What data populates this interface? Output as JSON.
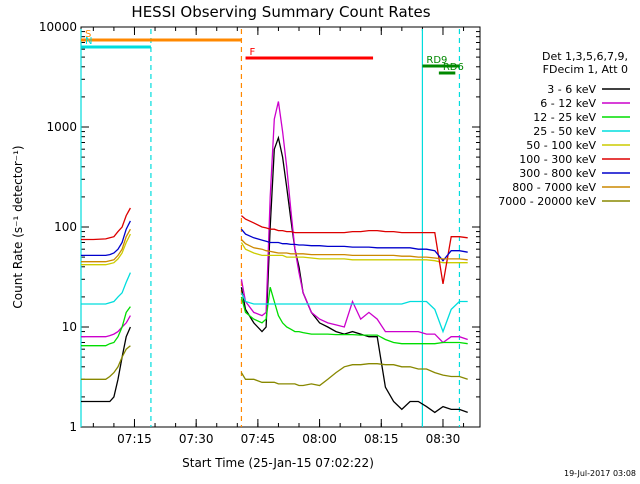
{
  "chart_data": {
    "type": "line",
    "title": "HESSI Observing Summary Count Rates",
    "xlabel": "Start Time (25-Jan-15 07:02:22)",
    "ylabel": "Count Rate (s⁻¹ detector⁻¹)",
    "y_scale": "log",
    "ylim": [
      1,
      10000
    ],
    "x_range_minutes_utc": [
      "07:02",
      "08:39"
    ],
    "xticks": [
      "07:15",
      "07:30",
      "07:45",
      "08:00",
      "08:15",
      "08:30"
    ],
    "yticks": [
      "1",
      "10",
      "100",
      "1000",
      "10000"
    ],
    "legend_header": [
      "Det 1,3,5,6,7,9,",
      "FDecim 1, Att 0"
    ],
    "x_times": [
      "07:02",
      "07:05",
      "07:08",
      "07:09",
      "07:10",
      "07:11",
      "07:12",
      "07:13",
      "07:14",
      "07:40",
      "07:41",
      "07:42",
      "07:44",
      "07:46",
      "07:47",
      "07:48",
      "07:49",
      "07:50",
      "07:51",
      "07:52",
      "07:53",
      "07:54",
      "07:55",
      "07:56",
      "07:58",
      "08:00",
      "08:02",
      "08:04",
      "08:06",
      "08:08",
      "08:10",
      "08:12",
      "08:14",
      "08:16",
      "08:18",
      "08:20",
      "08:22",
      "08:24",
      "08:26",
      "08:28",
      "08:30",
      "08:32",
      "08:34",
      "08:36"
    ],
    "series": [
      {
        "name": "3 - 6 keV",
        "color": "#000000",
        "values": [
          1.8,
          1.8,
          1.8,
          1.8,
          2,
          3,
          5,
          8,
          10,
          null,
          25,
          15,
          11,
          9,
          10,
          100,
          600,
          780,
          500,
          250,
          120,
          60,
          40,
          22,
          14,
          11,
          10,
          9,
          8.5,
          9,
          8.5,
          8,
          8,
          2.5,
          1.8,
          1.5,
          1.8,
          1.8,
          1.6,
          1.4,
          1.6,
          1.5,
          1.5,
          1.4
        ]
      },
      {
        "name": "6 - 12 keV",
        "color": "#cc00cc",
        "values": [
          8,
          8,
          8,
          8.2,
          8.5,
          9,
          10,
          11,
          13,
          null,
          30,
          18,
          14,
          13,
          14,
          200,
          1200,
          1800,
          900,
          400,
          150,
          60,
          35,
          22,
          14,
          12,
          11,
          10.5,
          10,
          18,
          12,
          14,
          12,
          9,
          9,
          9,
          9,
          9,
          8.5,
          8.5,
          7,
          8,
          8,
          7.5
        ]
      },
      {
        "name": "12 - 25 keV",
        "color": "#00dd00",
        "values": [
          6.5,
          6.5,
          6.5,
          6.8,
          7,
          8,
          10,
          14,
          16,
          null,
          20,
          14,
          12,
          11,
          12,
          25,
          18,
          13,
          11,
          10,
          9.5,
          9,
          9,
          8.8,
          8.5,
          8.5,
          8.5,
          8.4,
          8.4,
          8.4,
          8.3,
          8.3,
          8.3,
          7.5,
          7,
          6.8,
          6.8,
          6.8,
          6.8,
          6.8,
          7,
          7,
          7,
          6.8
        ]
      },
      {
        "name": "25 - 50 keV",
        "color": "#00dddd",
        "values": [
          17,
          17,
          17,
          17.5,
          18,
          20,
          22,
          28,
          35,
          null,
          22,
          18,
          17,
          17,
          17,
          17,
          17,
          17,
          17,
          17,
          17,
          17,
          17,
          17,
          17,
          17,
          17,
          17,
          17,
          17,
          17,
          17,
          17,
          17,
          17,
          17,
          18,
          18,
          18,
          15,
          9,
          15,
          18,
          18
        ]
      },
      {
        "name": "50 - 100 keV",
        "color": "#cccc00",
        "values": [
          42,
          42,
          42,
          43,
          44,
          48,
          55,
          70,
          85,
          null,
          70,
          60,
          55,
          52,
          52,
          52,
          52,
          52,
          52,
          50,
          50,
          50,
          50,
          50,
          49,
          48,
          48,
          48,
          48,
          47,
          47,
          47,
          47,
          47,
          47,
          47,
          47,
          47,
          47,
          46,
          44,
          44,
          44,
          44
        ]
      },
      {
        "name": "100 - 300 keV",
        "color": "#dd0000",
        "values": [
          75,
          75,
          76,
          78,
          80,
          90,
          100,
          130,
          155,
          null,
          130,
          120,
          110,
          100,
          98,
          95,
          95,
          92,
          92,
          90,
          90,
          88,
          88,
          88,
          88,
          88,
          88,
          88,
          88,
          90,
          90,
          92,
          92,
          90,
          90,
          88,
          88,
          88,
          88,
          88,
          27,
          80,
          80,
          78
        ]
      },
      {
        "name": "300 - 800 keV",
        "color": "#0000cc",
        "values": [
          52,
          52,
          52,
          53,
          55,
          60,
          70,
          95,
          115,
          null,
          95,
          85,
          78,
          74,
          72,
          70,
          70,
          70,
          68,
          68,
          67,
          67,
          66,
          66,
          65,
          65,
          64,
          64,
          64,
          63,
          63,
          63,
          62,
          62,
          62,
          62,
          62,
          60,
          60,
          58,
          46,
          58,
          58,
          56
        ]
      },
      {
        "name": "800 - 7000 keV",
        "color": "#cc8800",
        "values": [
          45,
          45,
          45,
          46,
          47,
          52,
          60,
          80,
          95,
          null,
          75,
          68,
          62,
          60,
          58,
          57,
          56,
          55,
          55,
          55,
          54,
          54,
          54,
          54,
          53,
          53,
          53,
          53,
          53,
          52,
          52,
          52,
          52,
          52,
          52,
          51,
          51,
          50,
          50,
          49,
          48,
          48,
          48,
          47
        ]
      },
      {
        "name": "7000 - 20000 keV",
        "color": "#888800",
        "values": [
          3,
          3,
          3,
          3.2,
          3.5,
          4,
          5,
          6,
          6.5,
          null,
          3.5,
          3,
          3,
          2.8,
          2.8,
          2.8,
          2.8,
          2.7,
          2.7,
          2.7,
          2.7,
          2.7,
          2.6,
          2.6,
          2.7,
          2.6,
          3,
          3.5,
          4,
          4.2,
          4.2,
          4.3,
          4.3,
          4.2,
          4.2,
          4,
          4,
          3.8,
          3.8,
          3.5,
          3.3,
          3.2,
          3.2,
          3
        ]
      }
    ],
    "flag_lines": [
      {
        "label": "S",
        "color": "#ff8800",
        "start": "07:02",
        "end": "07:41",
        "level": "top"
      },
      {
        "label": "N",
        "color": "#00dddd",
        "start": "07:02",
        "end": "07:19",
        "level": "second"
      },
      {
        "label": "F",
        "color": "#ff0000",
        "start": "07:42",
        "end": "08:13",
        "level": "third"
      },
      {
        "label": "RD9",
        "color": "#008800",
        "start": "08:25",
        "end": "08:34",
        "level": "fourth"
      },
      {
        "label": "RD6",
        "color": "#008800",
        "start": "08:29",
        "end": "08:33",
        "level": "fifth"
      }
    ],
    "grid": false,
    "legend_position": "right"
  },
  "footer": "19-Jul-2017 03:08"
}
